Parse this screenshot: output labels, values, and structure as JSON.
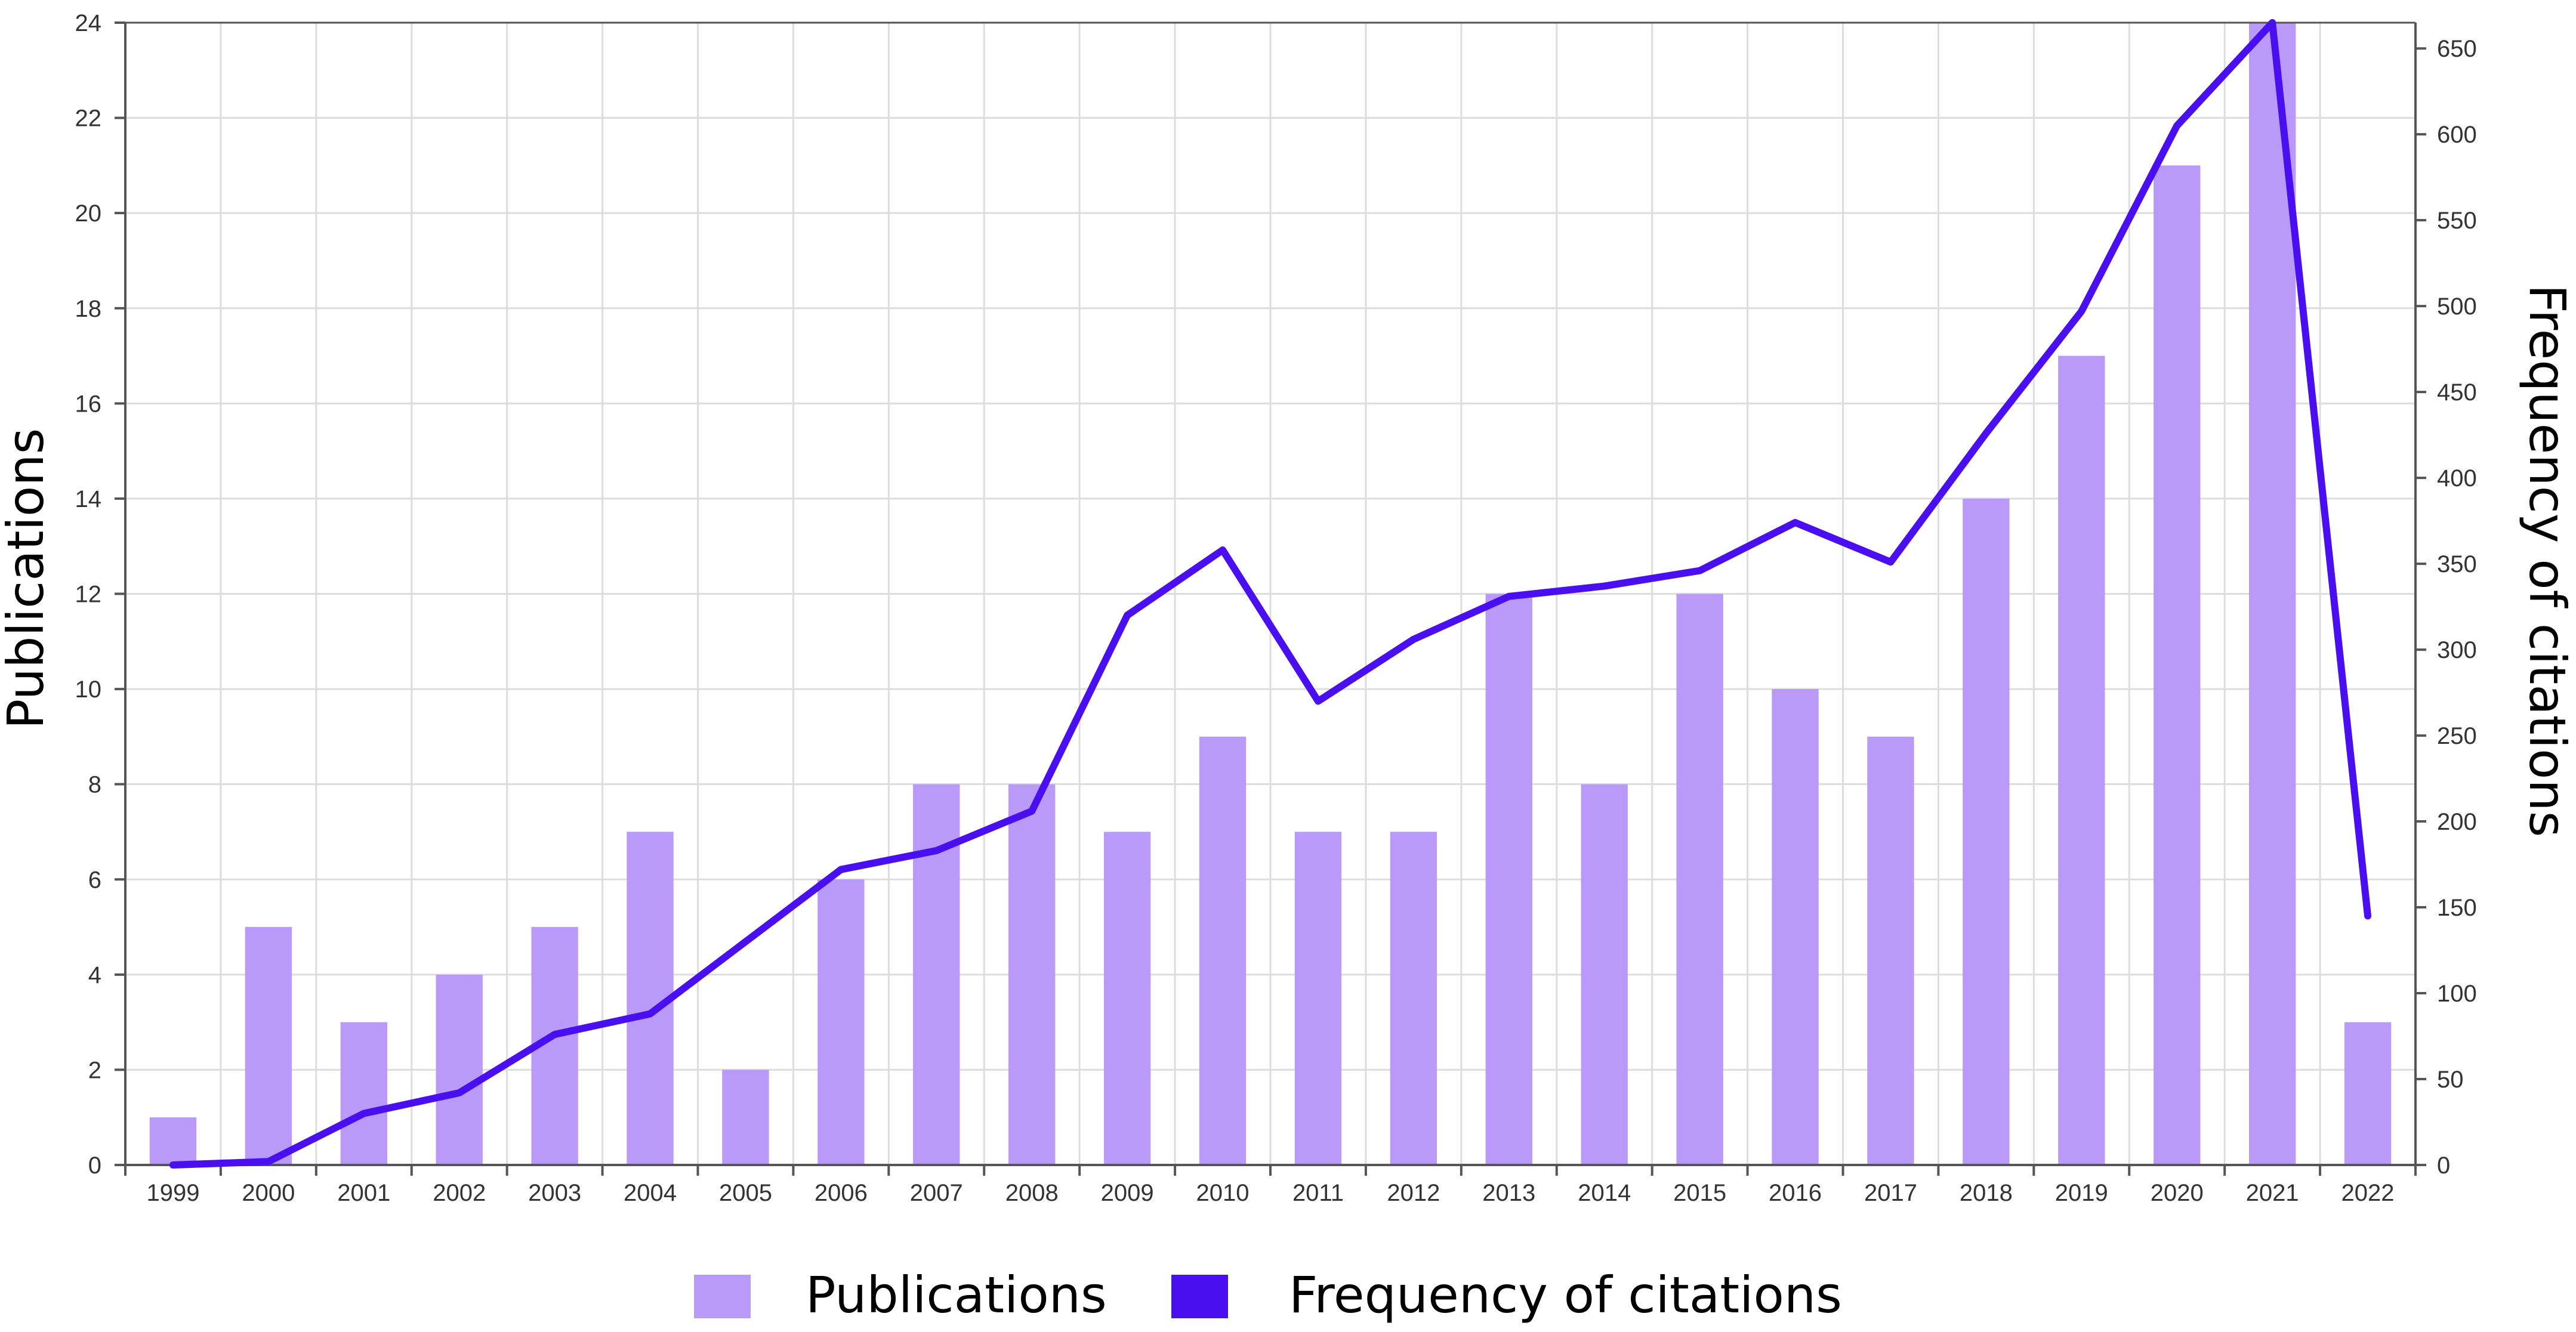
{
  "chart_data": {
    "type": "bar",
    "categories": [
      "1999",
      "2000",
      "2001",
      "2002",
      "2003",
      "2004",
      "2005",
      "2006",
      "2007",
      "2008",
      "2009",
      "2010",
      "2011",
      "2012",
      "2013",
      "2014",
      "2015",
      "2016",
      "2017",
      "2018",
      "2019",
      "2020",
      "2021",
      "2022"
    ],
    "series": [
      {
        "name": "Publications",
        "type": "bar",
        "axis": "left",
        "color": "#b99af8",
        "values": [
          1,
          5,
          3,
          4,
          5,
          7,
          2,
          6,
          8,
          8,
          7,
          9,
          7,
          7,
          12,
          8,
          12,
          10,
          9,
          14,
          17,
          21,
          24,
          3
        ]
      },
      {
        "name": "Frequency of citations",
        "type": "line",
        "axis": "right",
        "color": "#4a0ff0",
        "values": [
          0,
          2,
          30,
          42,
          76,
          88,
          130,
          172,
          183,
          206,
          320,
          358,
          270,
          306,
          331,
          337,
          346,
          374,
          351,
          426,
          497,
          605,
          665,
          145
        ]
      }
    ],
    "ylabel": "Publications",
    "y2label": "Frequency of citations",
    "ylim": [
      0,
      24
    ],
    "y2lim": [
      0,
      665
    ],
    "yticks": [
      "0",
      "2",
      "4",
      "6",
      "8",
      "10",
      "12",
      "14",
      "16",
      "18",
      "20",
      "22",
      "24"
    ],
    "y2ticks": [
      "0",
      "50",
      "100",
      "150",
      "200",
      "250",
      "300",
      "350",
      "400",
      "450",
      "500",
      "550",
      "600",
      "650"
    ],
    "grid": true,
    "legend": {
      "position": "bottom-center",
      "items": [
        {
          "label": "Publications",
          "color": "#b99af8"
        },
        {
          "label": "Frequency of citations",
          "color": "#4a0ff0"
        }
      ]
    }
  }
}
